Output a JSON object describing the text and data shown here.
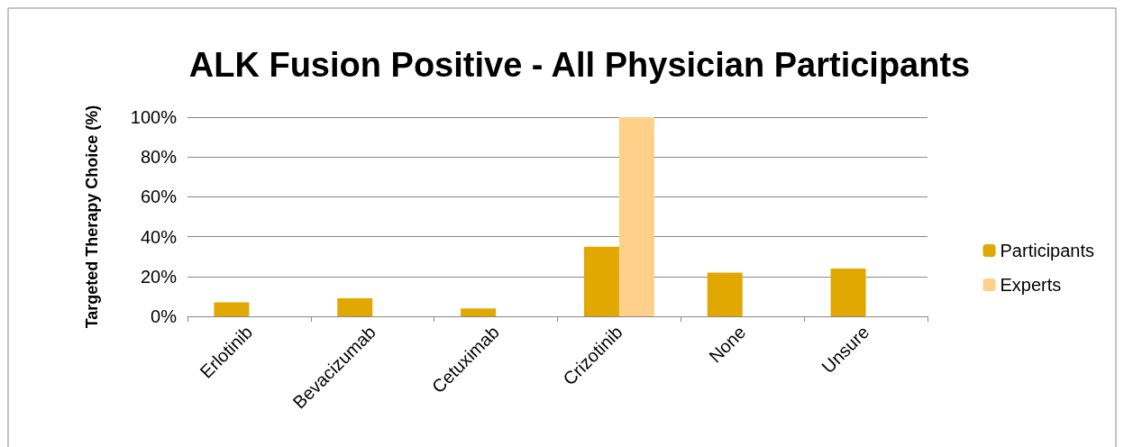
{
  "chart_data": {
    "type": "bar",
    "title": "ALK Fusion Positive - All Physician Participants",
    "ylabel": "Targeted Therapy Choice (%)",
    "categories": [
      "Erlotinib",
      "Bevacizumab",
      "Cetuximab",
      "Crizotinib",
      "None",
      "Unsure"
    ],
    "series": [
      {
        "name": "Participants",
        "color": "#e0a800",
        "values": [
          7,
          9,
          4,
          35,
          22,
          24
        ]
      },
      {
        "name": "Experts",
        "color": "#ffd08a",
        "values": [
          0,
          0,
          0,
          100,
          0,
          0
        ]
      }
    ],
    "ylim": [
      0,
      100
    ],
    "yticks": [
      {
        "value": 0,
        "label": "0%"
      },
      {
        "value": 20,
        "label": "20%"
      },
      {
        "value": 40,
        "label": "40%"
      },
      {
        "value": 60,
        "label": "60%"
      },
      {
        "value": 80,
        "label": "80%"
      },
      {
        "value": 100,
        "label": "100%"
      }
    ],
    "grid": "y",
    "legend": "right"
  }
}
